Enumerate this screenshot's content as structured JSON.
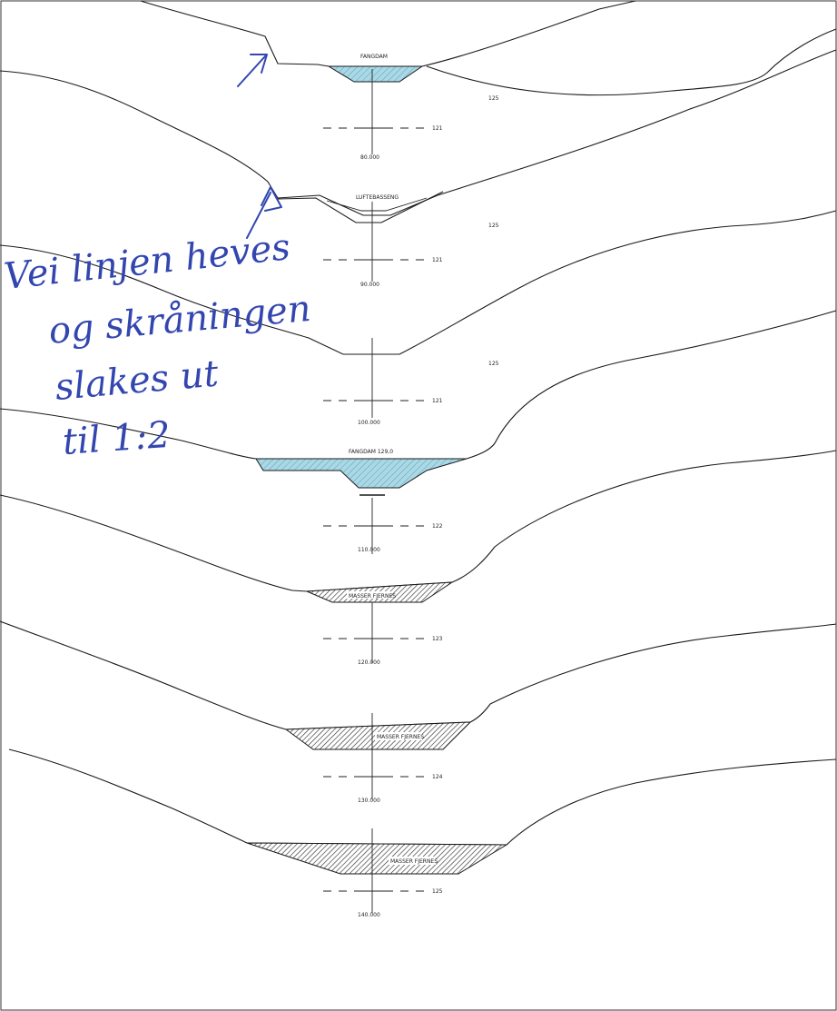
{
  "sections": [
    {
      "station": "80.000",
      "elevation": "121",
      "grid_label": "125",
      "structure_label": "FANGDAM",
      "fill": "water"
    },
    {
      "station": "90.000",
      "elevation": "121",
      "grid_label": "125",
      "structure_label": "LUFTEBASSENG",
      "fill": "none"
    },
    {
      "station": "100.000",
      "elevation": "121",
      "grid_label": "125",
      "structure_label": "",
      "fill": "none"
    },
    {
      "station": "110.000",
      "elevation": "122",
      "grid_label": "",
      "structure_label": "FANGDAM 129,0",
      "fill": "water"
    },
    {
      "station": "120.000",
      "elevation": "123",
      "grid_label": "",
      "structure_label": "MASSER FJERNES",
      "fill": "hatch"
    },
    {
      "station": "130.000",
      "elevation": "124",
      "grid_label": "",
      "structure_label": "MASSER FJERNES",
      "fill": "hatch"
    },
    {
      "station": "140.000",
      "elevation": "125",
      "grid_label": "",
      "structure_label": "MASSER FJERNES",
      "fill": "hatch"
    }
  ],
  "handwritten_note": {
    "lines": [
      "Vei linjen heves",
      "og skråningen",
      "slakes ut",
      "til 1:2"
    ]
  },
  "colors": {
    "water": "#a9d8e6",
    "ink": "#1a1a1a",
    "pen": "#3346b0",
    "hatch": "#444444"
  }
}
